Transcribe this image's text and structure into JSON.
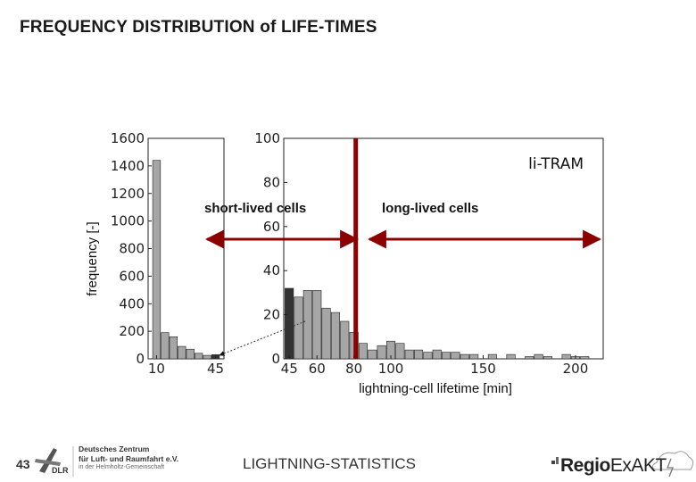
{
  "slide": {
    "title": "FREQUENCY DISTRIBUTION of LIFE-TIMES",
    "page_number": "43",
    "footer_center": "LIGHTNING-STATISTICS"
  },
  "dlr_logo": {
    "line1": "Deutsches Zentrum",
    "line2": "für Luft- und Raumfahrt e.V.",
    "line3": "in der Helmholtz-Gemeinschaft",
    "mark": "DLR"
  },
  "regio_logo": {
    "part1": "Regio",
    "part2": "ExAKT"
  },
  "chart_data": {
    "type": "bar",
    "ylabel": "frequency [-]",
    "xlabel": "lightning-cell lifetime [min]",
    "legend_text": "li-TRAM",
    "annotations": {
      "short": "short-lived cells",
      "long": "long-lived cells"
    },
    "colors": {
      "bar": "#a6a6a6",
      "bar_dark": "#333333",
      "divider": "#8b0000"
    },
    "left_panel": {
      "x_range": [
        5,
        50
      ],
      "ylim": [
        0,
        1600
      ],
      "yticks": [
        0,
        200,
        400,
        600,
        800,
        1000,
        1200,
        1400,
        1600
      ],
      "xtick_labels": [
        "10",
        "45"
      ],
      "xtick_values": [
        10,
        45
      ],
      "bars": [
        {
          "x": 10,
          "value": 1440
        },
        {
          "x": 15,
          "value": 190
        },
        {
          "x": 20,
          "value": 160
        },
        {
          "x": 25,
          "value": 90
        },
        {
          "x": 30,
          "value": 70
        },
        {
          "x": 35,
          "value": 40
        },
        {
          "x": 40,
          "value": 25
        },
        {
          "x": 45,
          "value": 30,
          "dark": true
        }
      ]
    },
    "right_panel": {
      "x_range": [
        42,
        215
      ],
      "ylim": [
        0,
        100
      ],
      "yticks": [
        0,
        20,
        40,
        60,
        80,
        100
      ],
      "xtick_labels": [
        "45",
        "60",
        "80",
        "100",
        "150",
        "200"
      ],
      "xtick_values": [
        45,
        60,
        80,
        100,
        150,
        200
      ],
      "divider_x": 81,
      "bars": [
        {
          "x": 45,
          "value": 32,
          "dark": true
        },
        {
          "x": 50,
          "value": 28
        },
        {
          "x": 55,
          "value": 31
        },
        {
          "x": 60,
          "value": 31
        },
        {
          "x": 65,
          "value": 23
        },
        {
          "x": 70,
          "value": 21
        },
        {
          "x": 75,
          "value": 17
        },
        {
          "x": 80,
          "value": 12
        },
        {
          "x": 85,
          "value": 7
        },
        {
          "x": 90,
          "value": 4
        },
        {
          "x": 95,
          "value": 6
        },
        {
          "x": 100,
          "value": 8
        },
        {
          "x": 105,
          "value": 7
        },
        {
          "x": 110,
          "value": 4
        },
        {
          "x": 115,
          "value": 4
        },
        {
          "x": 120,
          "value": 3
        },
        {
          "x": 125,
          "value": 4
        },
        {
          "x": 130,
          "value": 3
        },
        {
          "x": 135,
          "value": 3
        },
        {
          "x": 140,
          "value": 2
        },
        {
          "x": 145,
          "value": 2
        },
        {
          "x": 155,
          "value": 2
        },
        {
          "x": 165,
          "value": 2
        },
        {
          "x": 175,
          "value": 1
        },
        {
          "x": 180,
          "value": 2
        },
        {
          "x": 185,
          "value": 1
        },
        {
          "x": 195,
          "value": 2
        },
        {
          "x": 200,
          "value": 1
        },
        {
          "x": 205,
          "value": 1
        }
      ]
    }
  }
}
